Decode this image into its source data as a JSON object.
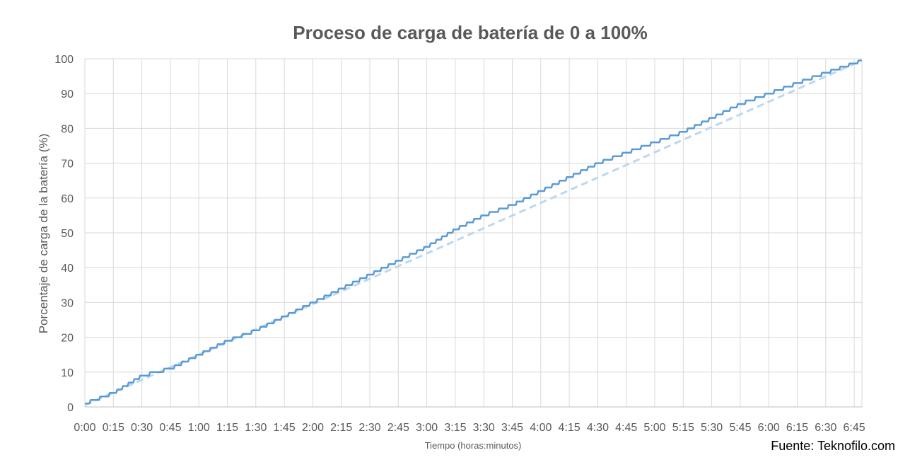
{
  "chart_data": {
    "type": "line",
    "title": "Proceso de carga de batería de 0 a 100%",
    "xlabel": "Tiempo (horas:minutos)",
    "ylabel": "Porcentaje de carga de la batería (%)",
    "ylim": [
      0,
      100
    ],
    "y_ticks": [
      "0",
      "10",
      "20",
      "30",
      "40",
      "50",
      "60",
      "70",
      "80",
      "90",
      "100"
    ],
    "x_tick_labels": [
      "0:00",
      "0:15",
      "0:30",
      "0:45",
      "1:00",
      "1:15",
      "1:30",
      "1:45",
      "2:00",
      "2:15",
      "2:30",
      "2:45",
      "3:00",
      "3:15",
      "3:30",
      "3:45",
      "4:00",
      "4:15",
      "4:30",
      "4:45",
      "5:00",
      "5:15",
      "5:30",
      "5:45",
      "6:00",
      "6:15",
      "6:30",
      "6:45"
    ],
    "grid": true,
    "legend": "none",
    "series": [
      {
        "kind": "measured",
        "color": "#5B9BD5",
        "points": [
          [
            "0:00",
            1
          ],
          [
            "0:15",
            4
          ],
          [
            "0:30",
            9
          ],
          [
            "0:45",
            11
          ],
          [
            "1:00",
            15
          ],
          [
            "1:15",
            19
          ],
          [
            "1:30",
            22
          ],
          [
            "1:45",
            26
          ],
          [
            "2:00",
            30
          ],
          [
            "2:15",
            34
          ],
          [
            "2:30",
            38
          ],
          [
            "2:45",
            42
          ],
          [
            "3:00",
            46
          ],
          [
            "3:15",
            51
          ],
          [
            "3:30",
            55
          ],
          [
            "3:45",
            58
          ],
          [
            "4:00",
            62
          ],
          [
            "4:15",
            66
          ],
          [
            "4:30",
            70
          ],
          [
            "4:45",
            73
          ],
          [
            "5:00",
            76
          ],
          [
            "5:15",
            79
          ],
          [
            "5:30",
            83
          ],
          [
            "5:45",
            87
          ],
          [
            "6:00",
            90
          ],
          [
            "6:15",
            93
          ],
          [
            "6:30",
            96
          ],
          [
            "6:49",
            99.5
          ]
        ]
      },
      {
        "kind": "trend",
        "color": "#BDD7EE",
        "points": [
          [
            "0:00",
            0.5
          ],
          [
            "6:49",
            99.5
          ]
        ]
      }
    ],
    "source": "Fuente: Teknofilo.com"
  }
}
